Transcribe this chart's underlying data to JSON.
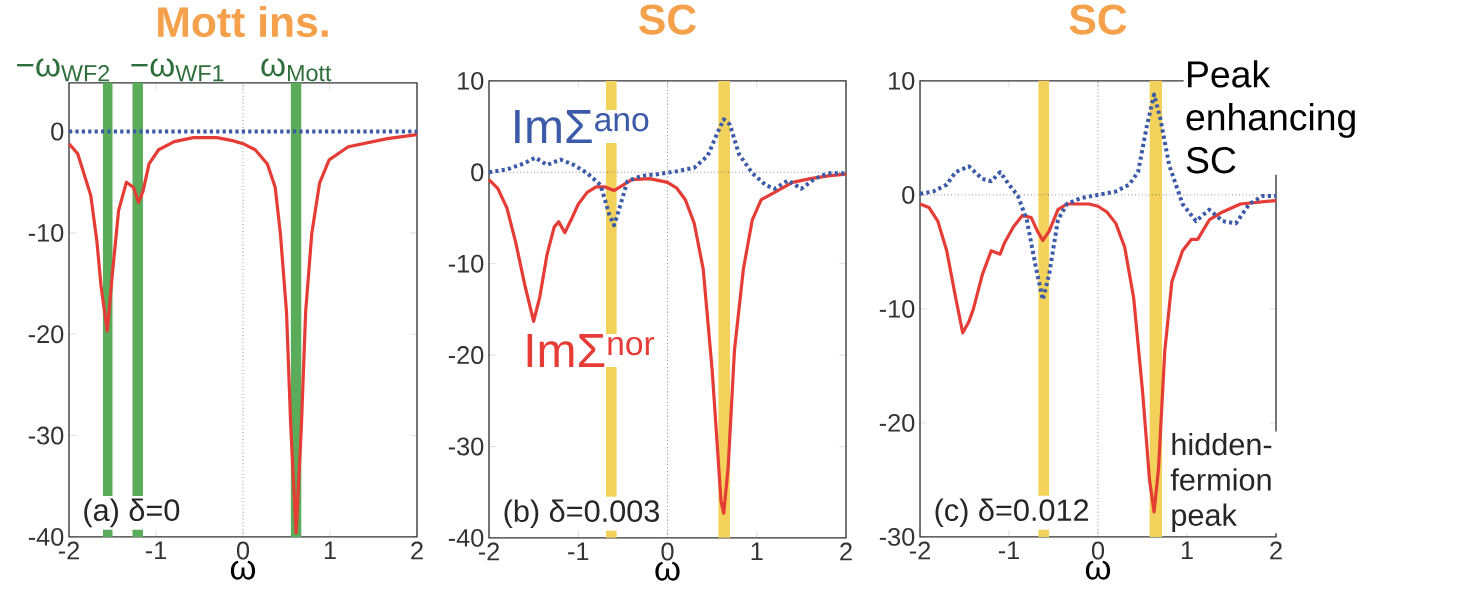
{
  "chart_data": [
    {
      "type": "line",
      "title": "Mott ins.",
      "xlabel": "ω",
      "xlim": [
        -2,
        2
      ],
      "ylim": [
        -40,
        4.8
      ],
      "xticks": [
        -2,
        -1,
        0,
        1,
        2
      ],
      "yticks": [
        -40,
        -30,
        -20,
        -10,
        0
      ],
      "series": [
        {
          "color": "#3b5ba8",
          "line_style": "dotted",
          "x": [
            -2,
            -1,
            0,
            1,
            2
          ],
          "values": [
            0,
            0,
            0,
            0,
            0
          ]
        },
        {
          "color": "#e63c36",
          "line_style": "solid",
          "x": [
            -2,
            -1.9,
            -1.75,
            -1.68,
            -1.63,
            -1.56,
            -1.5,
            -1.43,
            -1.34,
            -1.26,
            -1.2,
            -1.15,
            -1.08,
            -0.97,
            -0.79,
            -0.57,
            -0.3,
            -0.12,
            0,
            0.14,
            0.28,
            0.37,
            0.43,
            0.5,
            0.55,
            0.61,
            0.67,
            0.72,
            0.79,
            0.88,
            0.99,
            1.21,
            1.66,
            2
          ],
          "values": [
            -1.2,
            -2.2,
            -6.3,
            -10.8,
            -15.4,
            -19.7,
            -13.9,
            -7.8,
            -5.0,
            -5.5,
            -7.0,
            -5.9,
            -3.2,
            -1.8,
            -1.0,
            -0.6,
            -0.6,
            -0.9,
            -1.2,
            -1.8,
            -3.2,
            -5.5,
            -10.1,
            -17.8,
            -29.3,
            -39.6,
            -29.3,
            -17.8,
            -10.1,
            -5.1,
            -2.8,
            -1.5,
            -0.7,
            -0.3
          ]
        }
      ],
      "bands": [
        {
          "axis": "x",
          "from": -1.61,
          "to": -1.5,
          "label": "−ω$_{WF2}$",
          "color": "#5aac5a"
        },
        {
          "axis": "x",
          "from": -1.27,
          "to": -1.15,
          "label": "−ω$_{WF1}$",
          "color": "#5aac5a"
        },
        {
          "axis": "x",
          "from": 0.55,
          "to": 0.67,
          "label": "ω$_{Mott}$",
          "color": "#5aac5a"
        }
      ],
      "ref_lines": [
        {
          "axis": "x",
          "value": 0,
          "color": "#555555",
          "line_style": "dotted"
        }
      ],
      "annotations": [
        "(a) δ=0"
      ]
    },
    {
      "type": "line",
      "title": "SC",
      "xlabel": "ω",
      "xlim": [
        -2,
        2
      ],
      "ylim": [
        -40,
        10
      ],
      "xticks": [
        -2,
        -1,
        0,
        1,
        2
      ],
      "yticks": [
        -40,
        -30,
        -20,
        -10,
        0,
        10
      ],
      "series": [
        {
          "name": "ImΣ$^{ano}$",
          "color": "#3b5ba8",
          "line_style": "dotted",
          "x": [
            -2,
            -1.8,
            -1.6,
            -1.48,
            -1.35,
            -1.2,
            -1.05,
            -0.9,
            -0.75,
            -0.65,
            -0.6,
            -0.55,
            -0.45,
            -0.3,
            -0.1,
            0.1,
            0.3,
            0.45,
            0.55,
            0.63,
            0.7,
            0.8,
            0.95,
            1.1,
            1.2,
            1.35,
            1.5,
            1.65,
            1.8,
            2
          ],
          "values": [
            0,
            0.3,
            1.0,
            1.6,
            0.8,
            1.4,
            0.8,
            -0.1,
            -1.4,
            -4.7,
            -5.8,
            -4.3,
            -1.0,
            -0.4,
            -0.2,
            0.1,
            0.5,
            1.8,
            4.1,
            5.8,
            5.2,
            2.0,
            -0.1,
            -1.4,
            -1.8,
            -0.9,
            -1.8,
            -0.7,
            -0.1,
            -0.1
          ]
        },
        {
          "name": "ImΣ$^{nor}$",
          "color": "#e63c36",
          "line_style": "solid",
          "x": [
            -2,
            -1.9,
            -1.8,
            -1.7,
            -1.6,
            -1.5,
            -1.43,
            -1.35,
            -1.27,
            -1.22,
            -1.15,
            -1.08,
            -1.0,
            -0.9,
            -0.8,
            -0.7,
            -0.6,
            -0.5,
            -0.4,
            -0.2,
            0,
            0.1,
            0.2,
            0.3,
            0.4,
            0.5,
            0.6,
            0.63,
            0.68,
            0.75,
            0.85,
            0.95,
            1.05,
            1.2,
            1.4,
            1.6,
            1.8,
            2
          ],
          "values": [
            -0.8,
            -1.8,
            -3.9,
            -7.7,
            -12.3,
            -16.3,
            -13.6,
            -9.0,
            -6.0,
            -5.4,
            -6.6,
            -5.2,
            -3.5,
            -2.2,
            -1.6,
            -1.6,
            -2.0,
            -1.4,
            -0.8,
            -0.7,
            -1.1,
            -1.7,
            -3.0,
            -5.6,
            -10.6,
            -21.6,
            -36,
            -37.3,
            -32.2,
            -19.5,
            -10.6,
            -5.2,
            -3.0,
            -2.2,
            -1.1,
            -0.7,
            -0.4,
            -0.2
          ]
        }
      ],
      "bands": [
        {
          "axis": "x",
          "from": -0.69,
          "to": -0.57,
          "color": "#f2d25a"
        },
        {
          "axis": "x",
          "from": 0.57,
          "to": 0.7,
          "color": "#f2d25a"
        }
      ],
      "ref_lines": [
        {
          "axis": "x",
          "value": 0,
          "color": "#555555",
          "line_style": "dotted"
        },
        {
          "axis": "y",
          "value": 0,
          "color": "#555555",
          "line_style": "dotted"
        }
      ],
      "annotations": [
        "(b) δ=0.003"
      ]
    },
    {
      "type": "line",
      "title": "SC",
      "xlabel": "ω",
      "xlim": [
        -2,
        2
      ],
      "ylim": [
        -30,
        10
      ],
      "xticks": [
        -2,
        -1,
        0,
        1,
        2
      ],
      "yticks": [
        -30,
        -20,
        -10,
        0,
        10
      ],
      "series": [
        {
          "color": "#3b5ba8",
          "line_style": "dotted",
          "x": [
            -2,
            -1.85,
            -1.7,
            -1.6,
            -1.45,
            -1.3,
            -1.2,
            -1.1,
            -1.0,
            -0.9,
            -0.8,
            -0.7,
            -0.62,
            -0.55,
            -0.45,
            -0.35,
            -0.2,
            0,
            0.2,
            0.35,
            0.45,
            0.55,
            0.63,
            0.7,
            0.8,
            0.95,
            1.1,
            1.25,
            1.4,
            1.55,
            1.7,
            1.85,
            2
          ],
          "values": [
            0.1,
            0.3,
            0.9,
            2.0,
            2.5,
            1.4,
            1.2,
            2.0,
            0.9,
            -0.1,
            -2.2,
            -6.3,
            -9.2,
            -7.0,
            -2.2,
            -0.8,
            -0.3,
            0,
            0.3,
            0.9,
            2.0,
            6.1,
            8.8,
            6.7,
            2.6,
            -0.8,
            -2.3,
            -1.3,
            -2.3,
            -2.5,
            -0.8,
            -0.1,
            -0.1
          ]
        },
        {
          "color": "#e63c36",
          "line_style": "solid",
          "x": [
            -2,
            -1.9,
            -1.8,
            -1.7,
            -1.6,
            -1.52,
            -1.45,
            -1.4,
            -1.3,
            -1.2,
            -1.1,
            -1.05,
            -0.95,
            -0.85,
            -0.75,
            -0.68,
            -0.62,
            -0.55,
            -0.45,
            -0.35,
            -0.1,
            0,
            0.1,
            0.2,
            0.3,
            0.4,
            0.5,
            0.58,
            0.63,
            0.68,
            0.75,
            0.83,
            0.95,
            1.05,
            1.12,
            1.25,
            1.4,
            1.6,
            2
          ],
          "values": [
            -0.8,
            -1.1,
            -2.3,
            -4.9,
            -9.0,
            -12.1,
            -11.1,
            -10.0,
            -7.0,
            -4.9,
            -5.2,
            -4.2,
            -2.8,
            -1.8,
            -2.0,
            -3.2,
            -4.0,
            -3.2,
            -1.3,
            -0.8,
            -0.8,
            -1.0,
            -1.5,
            -2.5,
            -4.6,
            -9.0,
            -17.2,
            -25.1,
            -27.8,
            -24.0,
            -13.7,
            -7.6,
            -4.9,
            -3.9,
            -3.9,
            -2.2,
            -1.5,
            -0.8,
            -0.5
          ]
        }
      ],
      "bands": [
        {
          "axis": "x",
          "from": -0.67,
          "to": -0.55,
          "color": "#f2d25a"
        },
        {
          "axis": "x",
          "from": 0.58,
          "to": 0.72,
          "color": "#f2d25a"
        }
      ],
      "ref_lines": [
        {
          "axis": "x",
          "value": 0,
          "color": "#555555",
          "line_style": "dotted"
        },
        {
          "axis": "y",
          "value": 0,
          "color": "#555555",
          "line_style": "dotted"
        }
      ],
      "annotations": [
        "(c) δ=0.012",
        {
          "text": "Peak enhancing SC",
          "x": 0.63,
          "y": 8.8
        },
        {
          "text": "hidden-fermion peak",
          "x": 0.63,
          "y": -27.8
        }
      ]
    }
  ]
}
